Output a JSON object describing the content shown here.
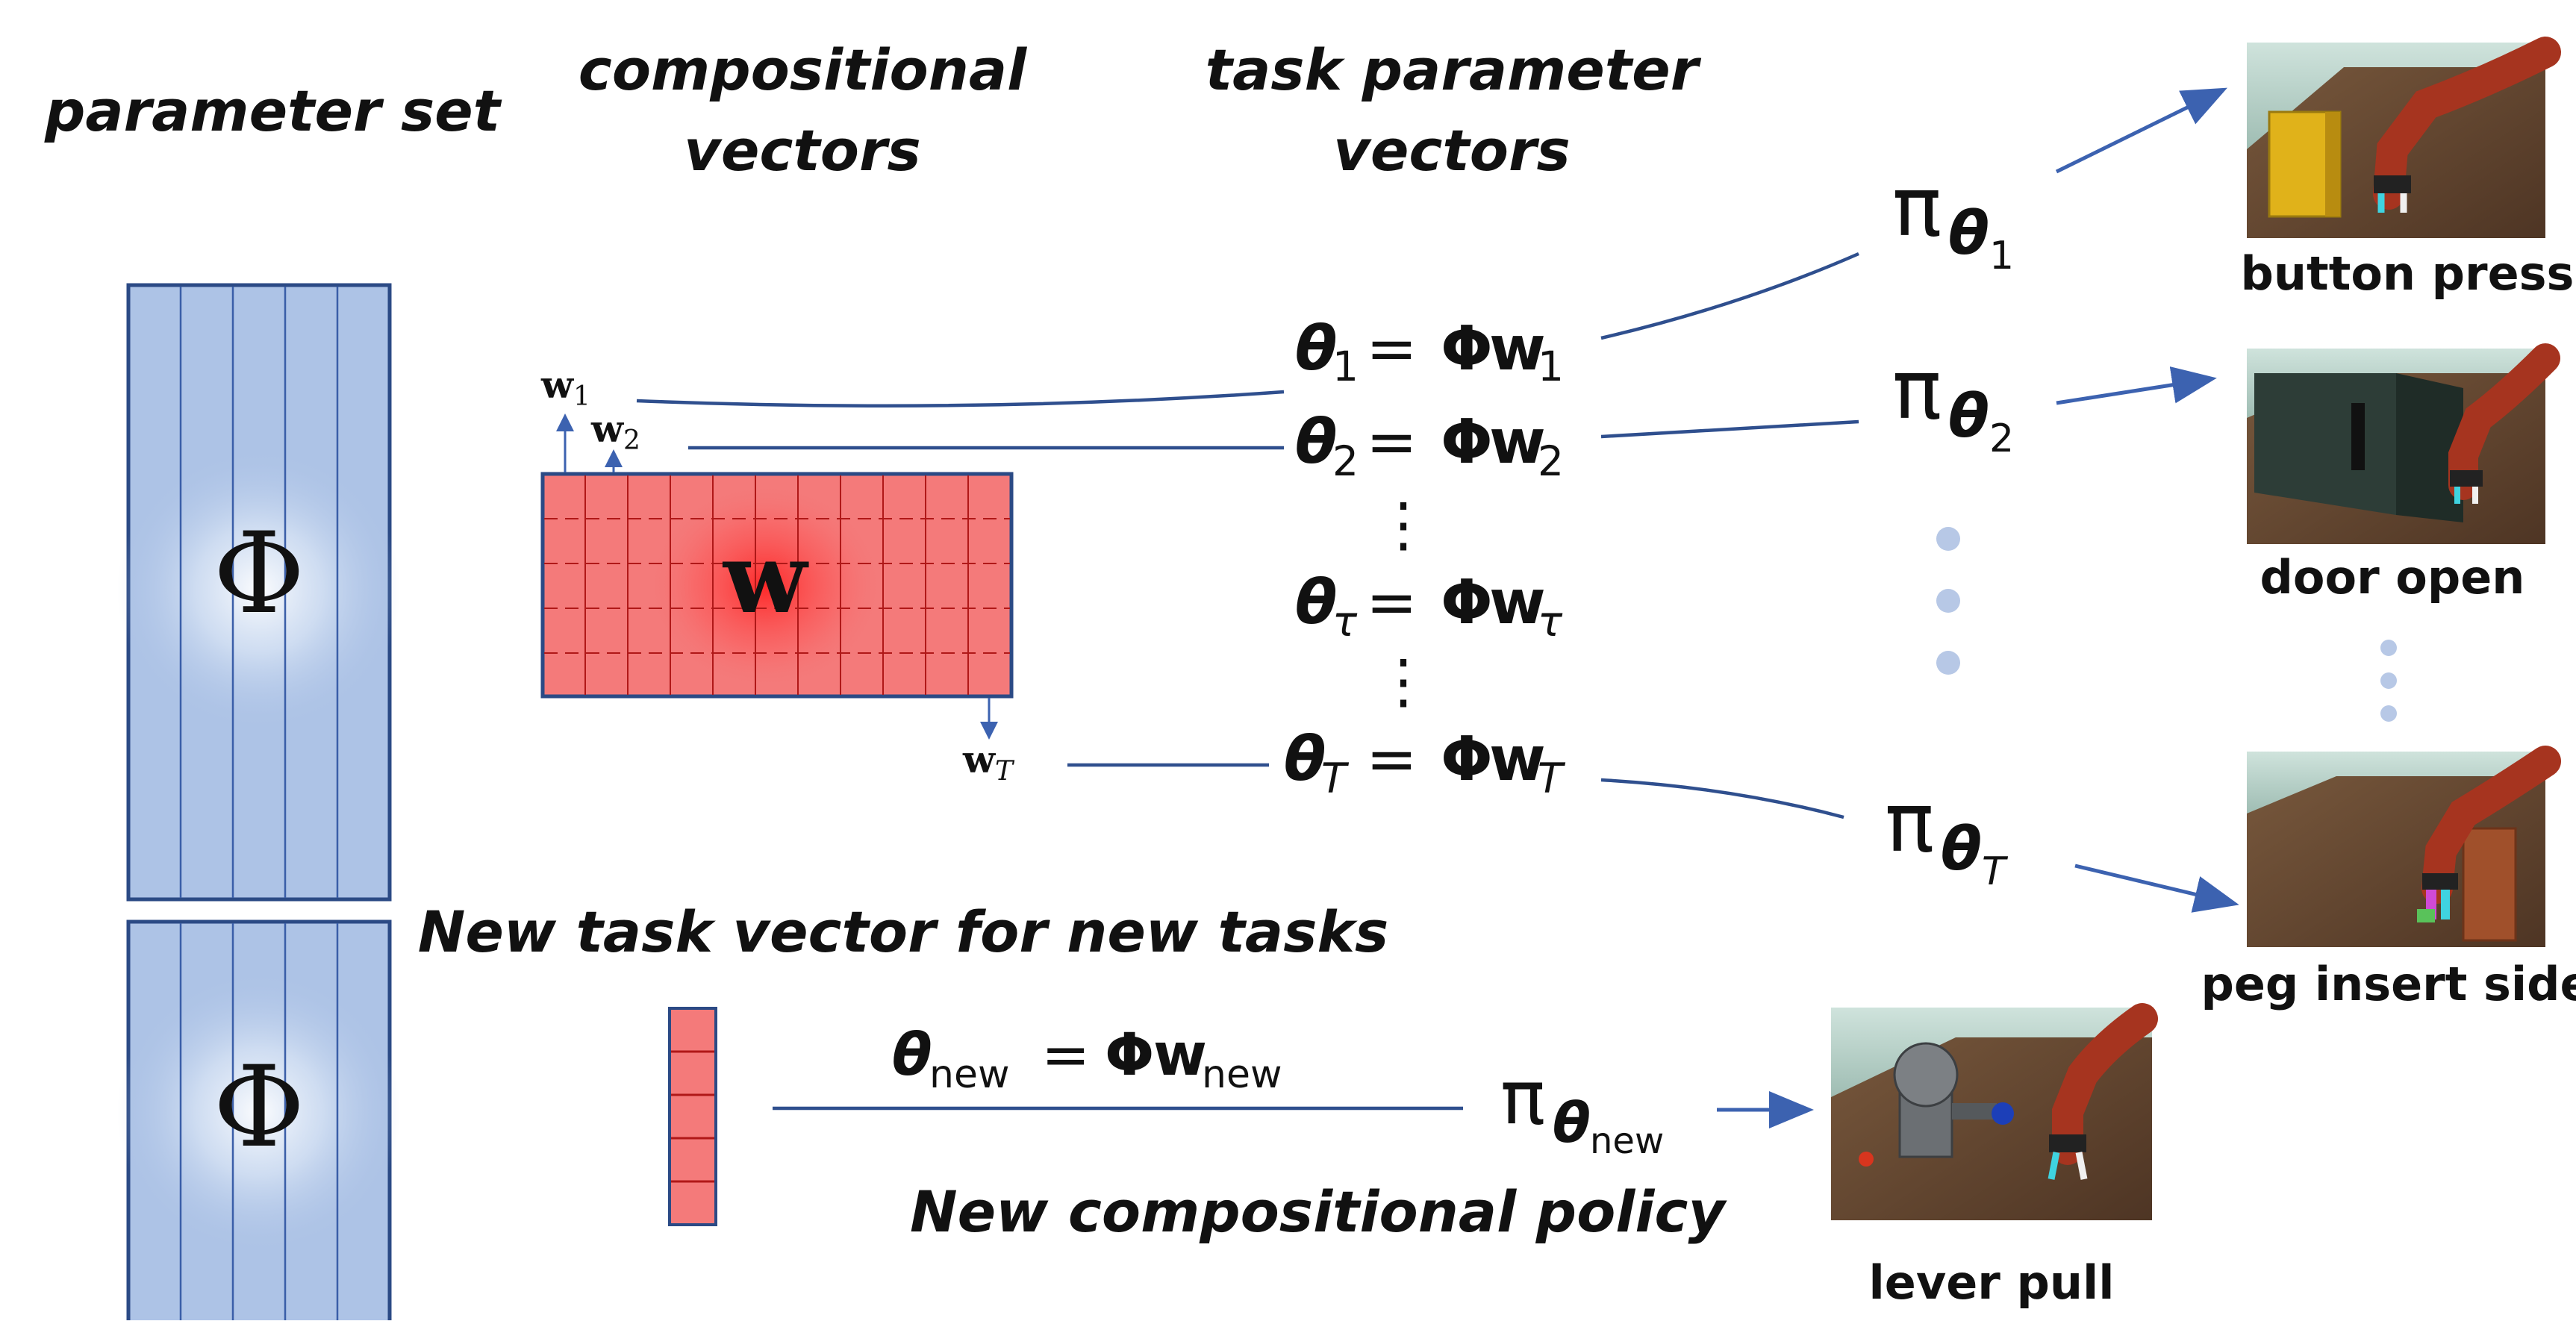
{
  "headings": {
    "parameter_set": "parameter set",
    "compositional_line1": "compositional",
    "compositional_line2": "vectors",
    "task_line1": "task parameter",
    "task_line2": "vectors",
    "new_task_vector": "New task vector for new tasks",
    "new_policy": "New compositional policy"
  },
  "symbols": {
    "phi": "Φ",
    "phi_bold": "Φ",
    "theta": "θ",
    "pi": "π",
    "w": "w",
    "equals": "=",
    "w1_sub": "1",
    "w2_sub": "2",
    "wT_sub": "T",
    "tau_sub": "τ",
    "new_sub": "new",
    "ellipsis": "⋮"
  },
  "tasks": [
    {
      "label": "button press",
      "policy_sub": "1"
    },
    {
      "label": "door open",
      "policy_sub": "2"
    },
    {
      "label": "peg insert side",
      "policy_sub": "T"
    }
  ],
  "new_task": {
    "label": "lever pull",
    "policy_sub": "new"
  },
  "colors": {
    "phi_fill": "#adc3e6",
    "phi_stroke": "#2b4a85",
    "w_fill": "#f47a7a",
    "w_stroke": "#2b4a85",
    "w_grid": "#b01818",
    "line": "#2f4f8e",
    "arrow": "#3c62b0",
    "dots": "#b7c8e6"
  }
}
